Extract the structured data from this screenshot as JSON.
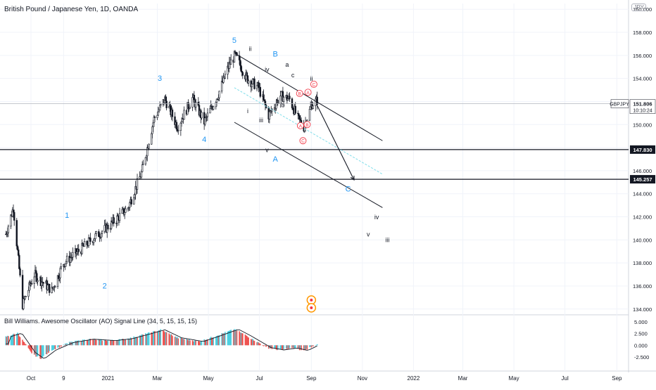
{
  "title": "British Pound / Japanese Yen, 1D, OANDA",
  "currency_badge": "JPY",
  "oscillator_title": "Bill Williams. Awesome Oscillator (AO) Signal Line (34, 5, 15, 15, 15)",
  "colors": {
    "up": "#26a69a",
    "down": "#131722",
    "wave": "#2196f3",
    "ao_up": "#4dd0e1",
    "ao_down": "#ef5350",
    "accent_circle": "#f23645",
    "price_label_bg": "#131722",
    "grid": "#f0f3fa"
  },
  "chart_data": [
    {
      "type": "candlestick",
      "symbol": "GBPJPY",
      "timeframe": "1D",
      "last_price": "151.806",
      "countdown": "10:10:24",
      "y_ticks": [
        "160.000",
        "158.000",
        "156.000",
        "154.000",
        "152.000",
        "150.000",
        "148.000",
        "146.000",
        "144.000",
        "142.000",
        "140.000",
        "138.000",
        "136.000",
        "134.000"
      ],
      "ylim": [
        133.5,
        160.5
      ],
      "x_ticks": [
        "Oct",
        "9",
        "2021",
        "Mar",
        "May",
        "Jul",
        "Sep",
        "Nov",
        "2022",
        "Mar",
        "May",
        "Jul",
        "Sep"
      ],
      "levels": [
        {
          "value": 147.83,
          "label": "147.830"
        },
        {
          "value": 145.257,
          "label": "145.257"
        }
      ],
      "reference_line": 151.806,
      "close_path": [
        [
          "2020-09-01",
          140.5
        ],
        [
          "2020-09-10",
          142.8
        ],
        [
          "2020-09-21",
          134.4
        ],
        [
          "2020-10-05",
          137.0
        ],
        [
          "2020-10-26",
          135.6
        ],
        [
          "2020-11-09",
          138.0
        ],
        [
          "2020-11-30",
          139.2
        ],
        [
          "2020-12-15",
          140.2
        ],
        [
          "2021-01-04",
          141.3
        ],
        [
          "2021-01-25",
          142.8
        ],
        [
          "2021-02-10",
          145.8
        ],
        [
          "2021-02-25",
          150.5
        ],
        [
          "2021-03-10",
          152.2
        ],
        [
          "2021-03-25",
          149.8
        ],
        [
          "2021-04-12",
          152.3
        ],
        [
          "2021-04-26",
          150.2
        ],
        [
          "2021-05-12",
          152.5
        ],
        [
          "2021-05-26",
          155.2
        ],
        [
          "2021-06-02",
          156.0
        ],
        [
          "2021-06-16",
          154.0
        ],
        [
          "2021-06-30",
          153.2
        ],
        [
          "2021-07-12",
          150.8
        ],
        [
          "2021-07-26",
          152.5
        ],
        [
          "2021-08-06",
          152.2
        ],
        [
          "2021-08-16",
          150.5
        ],
        [
          "2021-08-23",
          149.8
        ],
        [
          "2021-09-02",
          151.8
        ],
        [
          "2021-09-08",
          152.1
        ]
      ],
      "channel_lines": [
        {
          "from": [
            "2021-06-01",
            156.2
          ],
          "to": [
            "2021-11-25",
            148.6
          ]
        },
        {
          "from": [
            "2021-06-01",
            150.2
          ],
          "to": [
            "2021-11-25",
            142.8
          ]
        }
      ],
      "midline": {
        "from": [
          "2021-06-01",
          153.2
        ],
        "to": [
          "2021-11-25",
          145.7
        ]
      },
      "projection_arrow": {
        "from": [
          "2021-09-07",
          151.8
        ],
        "to": [
          "2021-10-22",
          145.2
        ]
      },
      "wave_labels": [
        {
          "text": "1",
          "x": "2020-11-13",
          "y": 141.9,
          "color": "wave"
        },
        {
          "text": "2",
          "x": "2020-12-28",
          "y": 135.8,
          "color": "wave"
        },
        {
          "text": "3",
          "x": "2021-03-04",
          "y": 153.8,
          "color": "wave"
        },
        {
          "text": "4",
          "x": "2021-04-26",
          "y": 148.5,
          "color": "wave"
        },
        {
          "text": "5",
          "x": "2021-06-01",
          "y": 157.1,
          "color": "wave"
        },
        {
          "text": "B",
          "x": "2021-07-20",
          "y": 155.9,
          "color": "wave"
        },
        {
          "text": "A",
          "x": "2021-07-20",
          "y": 146.8,
          "color": "wave"
        },
        {
          "text": "C",
          "x": "2021-10-15",
          "y": 144.2,
          "color": "wave"
        },
        {
          "text": "ii",
          "x": "2021-06-20",
          "y": 156.4,
          "color": "dark"
        },
        {
          "text": "iv",
          "x": "2021-07-10",
          "y": 154.6,
          "color": "dark"
        },
        {
          "text": "a",
          "x": "2021-08-03",
          "y": 155.0,
          "color": "dark"
        },
        {
          "text": "c",
          "x": "2021-08-10",
          "y": 154.1,
          "color": "dark"
        },
        {
          "text": "ii",
          "x": "2021-09-01",
          "y": 153.8,
          "color": "dark"
        },
        {
          "text": "i",
          "x": "2021-06-17",
          "y": 151.0,
          "color": "dark"
        },
        {
          "text": "iii",
          "x": "2021-07-03",
          "y": 150.2,
          "color": "dark"
        },
        {
          "text": "b",
          "x": "2021-07-29",
          "y": 151.5,
          "color": "dark"
        },
        {
          "text": "v",
          "x": "2021-07-10",
          "y": 147.6,
          "color": "dark"
        },
        {
          "text": "iv",
          "x": "2021-11-18",
          "y": 141.8,
          "color": "dark"
        },
        {
          "text": "v",
          "x": "2021-11-08",
          "y": 140.3,
          "color": "dark"
        },
        {
          "text": "iii",
          "x": "2021-12-01",
          "y": 139.8,
          "color": "dark"
        }
      ],
      "circled_labels": [
        {
          "text": "A",
          "x": "2021-08-28",
          "y": 152.8
        },
        {
          "text": "B",
          "x": "2021-08-18",
          "y": 152.7
        },
        {
          "text": "C",
          "x": "2021-09-04",
          "y": 153.5
        },
        {
          "text": "A",
          "x": "2021-08-19",
          "y": 149.9
        },
        {
          "text": "B",
          "x": "2021-08-27",
          "y": 150.0
        },
        {
          "text": "C",
          "x": "2021-08-22",
          "y": 148.6
        }
      ]
    },
    {
      "type": "bar",
      "name": "Bill Williams. Awesome Oscillator (AO) Signal Line",
      "y_ticks": [
        "5.000",
        "2.500",
        "0.000",
        "-2.500"
      ],
      "ylim": [
        -5.5,
        6.5
      ],
      "ao_path": [
        [
          "2020-09-01",
          1.8
        ],
        [
          "2020-09-15",
          2.6
        ],
        [
          "2020-10-01",
          -1.5
        ],
        [
          "2020-10-12",
          -2.9
        ],
        [
          "2020-10-26",
          -1.0
        ],
        [
          "2020-11-16",
          0.6
        ],
        [
          "2020-12-10",
          1.3
        ],
        [
          "2021-01-05",
          1.0
        ],
        [
          "2021-01-25",
          1.4
        ],
        [
          "2021-02-15",
          2.4
        ],
        [
          "2021-03-05",
          3.3
        ],
        [
          "2021-03-25",
          1.6
        ],
        [
          "2021-04-20",
          0.8
        ],
        [
          "2021-05-10",
          2.0
        ],
        [
          "2021-06-01",
          3.4
        ],
        [
          "2021-06-15",
          2.1
        ],
        [
          "2021-07-10",
          -0.5
        ],
        [
          "2021-07-25",
          -1.0
        ],
        [
          "2021-08-10",
          -0.6
        ],
        [
          "2021-08-23",
          -1.1
        ],
        [
          "2021-09-08",
          0.3
        ]
      ]
    }
  ]
}
